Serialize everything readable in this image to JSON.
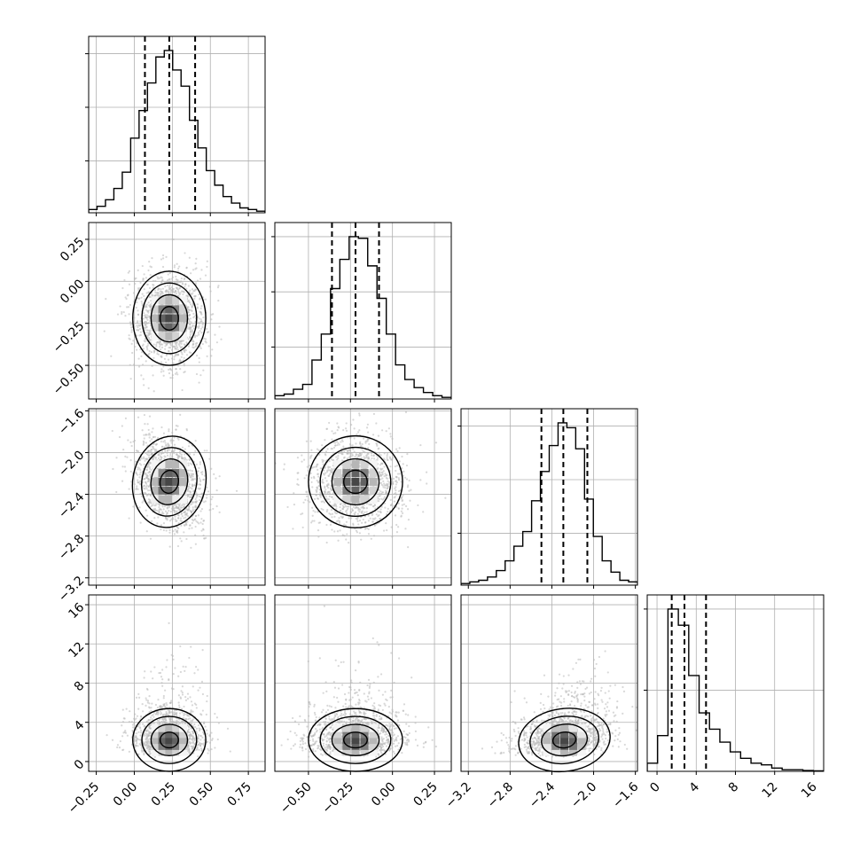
{
  "chart_data": {
    "type": "corner",
    "parameters": [
      {
        "range": [
          -0.3,
          0.86
        ],
        "ticks": [
          -0.25,
          0,
          0.25,
          0.5,
          0.75
        ],
        "tick_labels": [
          "−0.25",
          "0.00",
          "0.25",
          "0.50",
          "0.75"
        ],
        "quantiles": [
          0.07,
          0.23,
          0.4
        ],
        "mean": 0.23,
        "sd": 0.12,
        "histogram": [
          2,
          4,
          8,
          15,
          25,
          46,
          63,
          80,
          96,
          100,
          88,
          78,
          57,
          40,
          26,
          17,
          10,
          6,
          3,
          2,
          1
        ],
        "hist_ymax": 100,
        "hist_yticks": [
          32,
          65,
          98
        ]
      },
      {
        "range": [
          -0.7,
          0.35
        ],
        "ticks": [
          -0.5,
          -0.25,
          0,
          0.25
        ],
        "tick_labels": [
          "−0.50",
          "−0.25",
          "0.00",
          "0.25"
        ],
        "quantiles": [
          -0.36,
          -0.22,
          -0.08
        ],
        "mean": -0.22,
        "sd": 0.14,
        "histogram": [
          2,
          3,
          6,
          9,
          24,
          40,
          68,
          86,
          100,
          99,
          82,
          62,
          40,
          21,
          12,
          7,
          4,
          2,
          1
        ],
        "hist_ymax": 100,
        "hist_yticks": [
          32,
          66,
          100
        ]
      },
      {
        "range": [
          -3.27,
          -1.58
        ],
        "ticks": [
          -3.2,
          -2.8,
          -2.4,
          -2.0,
          -1.6
        ],
        "tick_labels": [
          "−3.2",
          "−2.8",
          "−2.4",
          "−2.0",
          "−1.6"
        ],
        "quantiles": [
          -2.5,
          -2.29,
          -2.06
        ],
        "mean": -2.28,
        "sd": 0.22,
        "histogram": [
          1,
          2,
          3,
          5,
          9,
          15,
          24,
          33,
          52,
          70,
          86,
          100,
          97,
          84,
          53,
          30,
          15,
          8,
          3,
          2
        ],
        "hist_ymax": 100,
        "hist_yticks": [
          32,
          65,
          98
        ]
      },
      {
        "range": [
          -1,
          17
        ],
        "ticks": [
          0,
          4,
          8,
          12,
          16
        ],
        "tick_labels": [
          "0",
          "4",
          "8",
          "12",
          "16"
        ],
        "quantiles": [
          1.5,
          2.8,
          5
        ],
        "mean": 2.6,
        "sd": 1.6,
        "histogram": [
          5,
          22,
          100,
          90,
          59,
          36,
          26,
          18,
          12,
          8,
          5,
          4,
          2,
          1,
          1,
          0.5,
          0.3
        ],
        "hist_ymax": 100,
        "hist_yticks": [
          50,
          100
        ]
      }
    ],
    "pair_correlations": {
      "1-0": 0.0,
      "2-0": -0.35,
      "2-1": 0.0,
      "3-0": 0.0,
      "3-1": 0.0,
      "3-2": 0.25
    },
    "colors": {
      "line": "#000000",
      "grid": "#b0b0b0",
      "points": "#b8b8b8",
      "background": "#ffffff"
    }
  }
}
